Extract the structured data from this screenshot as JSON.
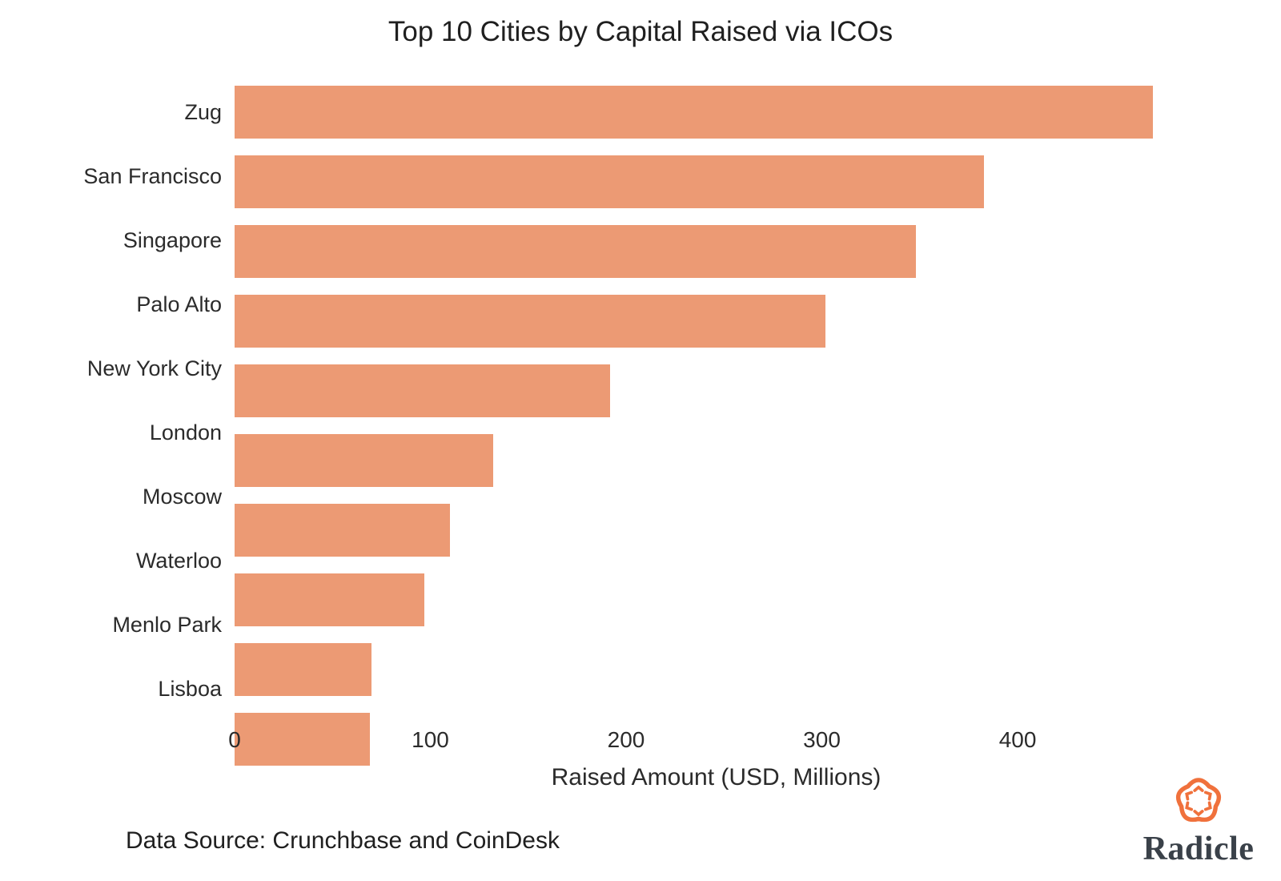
{
  "title": "Top 10 Cities by Capital Raised via ICOs",
  "chart_data": {
    "type": "bar",
    "orientation": "horizontal",
    "title": "Top 10 Cities by Capital Raised via ICOs",
    "categories": [
      "Zug",
      "San Francisco",
      "Singapore",
      "Palo Alto",
      "New York City",
      "London",
      "Moscow",
      "Waterloo",
      "Menlo Park",
      "Lisboa"
    ],
    "values": [
      469,
      383,
      348,
      302,
      192,
      132,
      110,
      97,
      70,
      69
    ],
    "xlabel": "Raised Amount (USD, Millions)",
    "ylabel": "",
    "xlim": [
      0,
      492
    ],
    "xticks": [
      0,
      100,
      200,
      300,
      400
    ],
    "grid": false,
    "legend_position": "none",
    "bar_color": "#ec9a74"
  },
  "footer": {
    "data_source": "Data Source: Crunchbase and CoinDesk"
  },
  "branding": {
    "wordmark": "Radicle",
    "logo_color": "#f0713c",
    "wordmark_color": "#3a4149"
  }
}
